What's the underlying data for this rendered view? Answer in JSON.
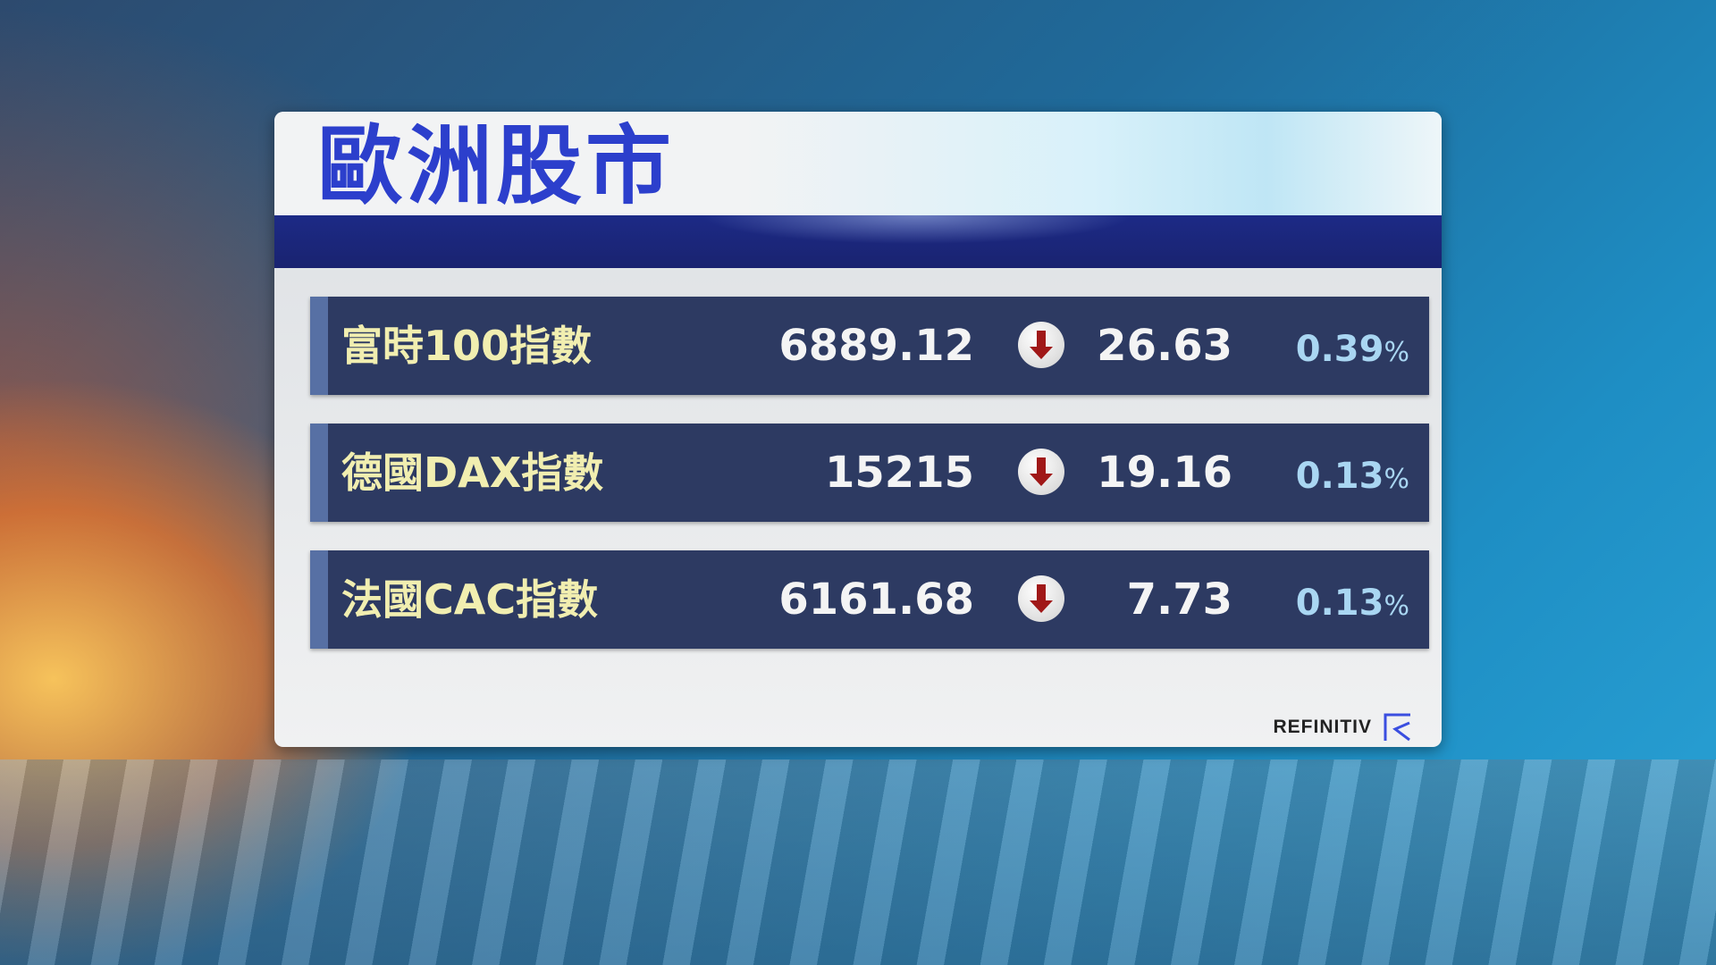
{
  "title": "歐洲股市",
  "rows": [
    {
      "name": "富時100指數",
      "value": "6889.12",
      "direction": "down",
      "change": "26.63",
      "percent": "0.39",
      "percent_unit": "%"
    },
    {
      "name": "德國DAX指數",
      "value": "15215",
      "direction": "down",
      "change": "19.16",
      "percent": "0.13",
      "percent_unit": "%"
    },
    {
      "name": "法國CAC指數",
      "value": "6161.68",
      "direction": "down",
      "change": "7.73",
      "percent": "0.13",
      "percent_unit": "%"
    }
  ],
  "source": {
    "label": "REFINITIV",
    "icon": "refinitiv-logo-icon"
  },
  "colors": {
    "title": "#2c3fcc",
    "row_bg": "#2d3a62",
    "name": "#f1eeb0",
    "percent": "#a9d6f2",
    "down_arrow": "#a01818"
  }
}
